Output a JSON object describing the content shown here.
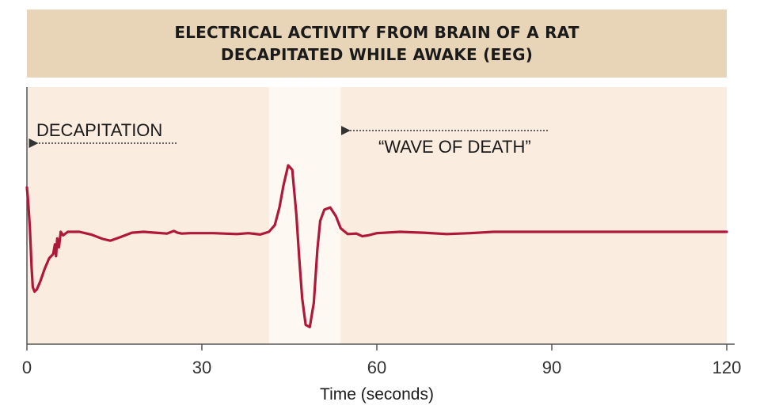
{
  "chart_data": {
    "type": "line",
    "title_lines": [
      "ELECTRICAL ACTIVITY FROM BRAIN OF A RAT",
      "DECAPITATED WHILE AWAKE (EEG)"
    ],
    "xlabel": "Time (seconds)",
    "ylabel": "",
    "xlim": [
      0,
      120
    ],
    "x_ticks": [
      0,
      30,
      60,
      90,
      120
    ],
    "x_tick_labels": [
      "0",
      "30",
      "60",
      "90",
      "120"
    ],
    "y_axis_visible": false,
    "grid": false,
    "colors": {
      "line": "#b0183a",
      "panel": "#faecdf",
      "highlight": "#fdf8f2",
      "title_bg": "#e8d5b8",
      "axis": "#555555"
    },
    "highlight_band": [
      41.5,
      53.8
    ],
    "annotations": [
      {
        "text": "DECAPITATION",
        "x": 0
      },
      {
        "text": "“WAVE OF DEATH”",
        "x": 53.8
      }
    ],
    "series": [
      {
        "x": [
          0,
          0.2,
          0.5,
          0.8,
          1.0,
          1.3,
          1.7,
          2.3,
          3.0,
          3.8,
          4.5,
          4.8,
          5.0,
          5.2,
          5.5,
          5.8,
          6.2,
          7,
          9,
          11,
          13,
          14.3,
          16,
          18,
          20,
          22,
          24,
          25.2,
          25.8,
          26.5,
          28,
          32,
          36,
          38,
          40,
          41.5,
          42.5,
          43.3,
          44.0,
          44.8,
          45.5,
          46.2,
          46.7,
          47.2,
          47.8,
          48.5,
          49.2,
          49.8,
          50.3,
          51.0,
          52.0,
          53.0,
          53.8,
          55,
          56.5,
          57.5,
          58.5,
          60,
          64,
          68,
          72,
          76,
          80,
          90,
          100,
          110,
          120
        ],
        "y": [
          1.0,
          0.7,
          0.1,
          -0.8,
          -1.25,
          -1.35,
          -1.3,
          -1.12,
          -0.85,
          -0.6,
          -0.5,
          -0.28,
          -0.55,
          -0.15,
          -0.35,
          0.0,
          -0.08,
          0.0,
          0.0,
          -0.06,
          -0.16,
          -0.2,
          -0.12,
          -0.02,
          0.0,
          -0.02,
          -0.04,
          0.02,
          -0.02,
          -0.04,
          -0.03,
          -0.03,
          -0.05,
          -0.03,
          -0.06,
          0.0,
          0.15,
          0.55,
          1.05,
          1.5,
          1.4,
          0.4,
          -0.6,
          -1.5,
          -2.1,
          -2.15,
          -1.6,
          -0.4,
          0.25,
          0.5,
          0.55,
          0.35,
          0.08,
          -0.05,
          -0.04,
          -0.1,
          -0.08,
          -0.03,
          0.0,
          -0.02,
          -0.05,
          -0.03,
          0.0,
          0.0,
          0.0,
          0.0,
          0.0
        ]
      }
    ]
  }
}
